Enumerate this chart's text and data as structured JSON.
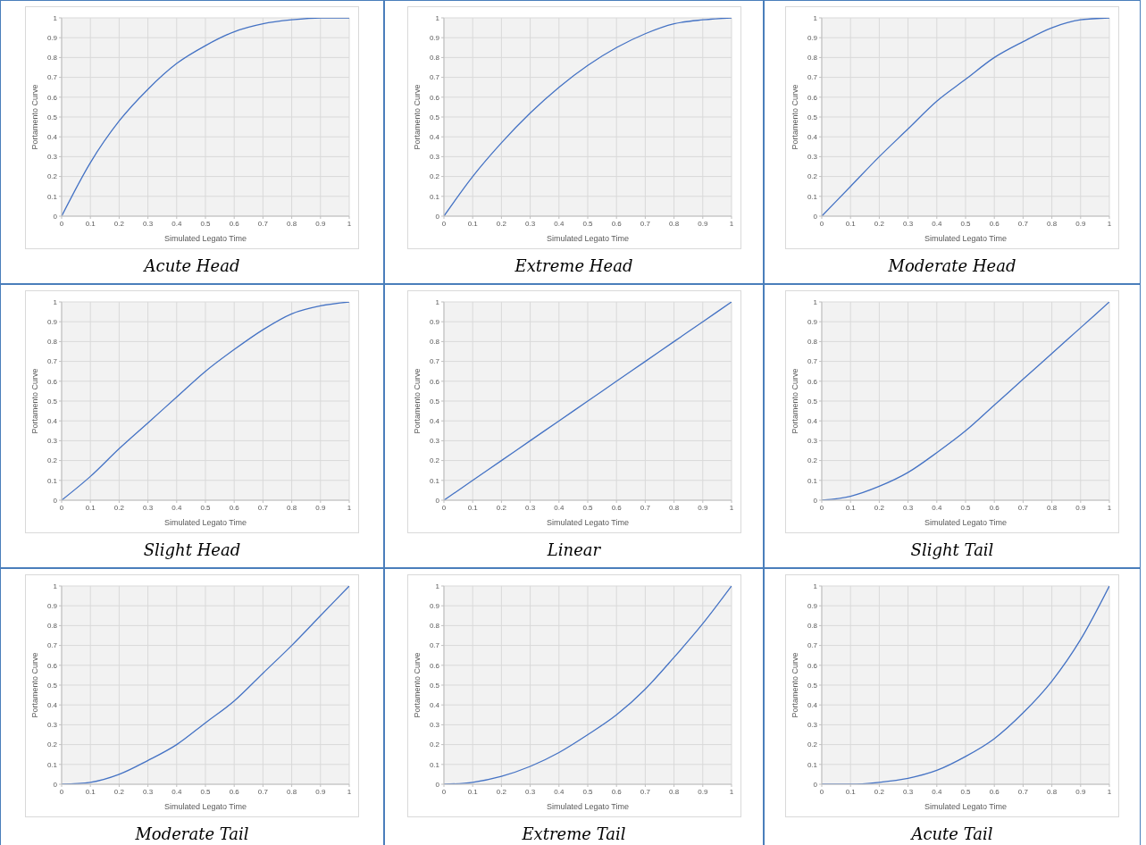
{
  "chart_data": [
    {
      "type": "line",
      "title": "Acute Head",
      "xlabel": "Simulated Legato Time",
      "ylabel": "Portamento Curve",
      "color": "#4472c4",
      "x": [
        0,
        0.1,
        0.2,
        0.3,
        0.4,
        0.5,
        0.6,
        0.7,
        0.8,
        0.9,
        1
      ],
      "values": [
        0,
        0.27,
        0.48,
        0.64,
        0.77,
        0.86,
        0.93,
        0.97,
        0.99,
        1,
        1
      ],
      "xlim": [
        0,
        1
      ],
      "ylim": [
        0,
        1
      ],
      "xticks": [
        0,
        0.1,
        0.2,
        0.3,
        0.4,
        0.5,
        0.6,
        0.7,
        0.8,
        0.9,
        1
      ],
      "yticks": [
        0,
        0.1,
        0.2,
        0.3,
        0.4,
        0.5,
        0.6,
        0.7,
        0.8,
        0.9,
        1
      ],
      "grid": true
    },
    {
      "type": "line",
      "title": "Extreme Head",
      "xlabel": "Simulated Legato Time",
      "ylabel": "Portamento Curve",
      "color": "#4472c4",
      "x": [
        0,
        0.1,
        0.2,
        0.3,
        0.4,
        0.5,
        0.6,
        0.7,
        0.8,
        0.9,
        1
      ],
      "values": [
        0,
        0.2,
        0.37,
        0.52,
        0.65,
        0.76,
        0.85,
        0.92,
        0.97,
        0.99,
        1
      ],
      "xlim": [
        0,
        1
      ],
      "ylim": [
        0,
        1
      ],
      "xticks": [
        0,
        0.1,
        0.2,
        0.3,
        0.4,
        0.5,
        0.6,
        0.7,
        0.8,
        0.9,
        1
      ],
      "yticks": [
        0,
        0.1,
        0.2,
        0.3,
        0.4,
        0.5,
        0.6,
        0.7,
        0.8,
        0.9,
        1
      ],
      "grid": true
    },
    {
      "type": "line",
      "title": "Moderate Head",
      "xlabel": "Simulated Legato Time",
      "ylabel": "Portamento Curve",
      "color": "#4472c4",
      "x": [
        0,
        0.1,
        0.2,
        0.3,
        0.4,
        0.5,
        0.6,
        0.7,
        0.8,
        0.9,
        1
      ],
      "values": [
        0,
        0.15,
        0.3,
        0.44,
        0.58,
        0.69,
        0.8,
        0.88,
        0.95,
        0.99,
        1
      ],
      "xlim": [
        0,
        1
      ],
      "ylim": [
        0,
        1
      ],
      "xticks": [
        0,
        0.1,
        0.2,
        0.3,
        0.4,
        0.5,
        0.6,
        0.7,
        0.8,
        0.9,
        1
      ],
      "yticks": [
        0,
        0.1,
        0.2,
        0.3,
        0.4,
        0.5,
        0.6,
        0.7,
        0.8,
        0.9,
        1
      ],
      "grid": true
    },
    {
      "type": "line",
      "title": "Slight Head",
      "xlabel": "Simulated Legato Time",
      "ylabel": "Portamento Curve",
      "color": "#4472c4",
      "x": [
        0,
        0.1,
        0.2,
        0.3,
        0.4,
        0.5,
        0.6,
        0.7,
        0.8,
        0.9,
        1
      ],
      "values": [
        0,
        0.12,
        0.26,
        0.39,
        0.52,
        0.65,
        0.76,
        0.86,
        0.94,
        0.98,
        1
      ],
      "xlim": [
        0,
        1
      ],
      "ylim": [
        0,
        1
      ],
      "xticks": [
        0,
        0.1,
        0.2,
        0.3,
        0.4,
        0.5,
        0.6,
        0.7,
        0.8,
        0.9,
        1
      ],
      "yticks": [
        0,
        0.1,
        0.2,
        0.3,
        0.4,
        0.5,
        0.6,
        0.7,
        0.8,
        0.9,
        1
      ],
      "grid": true
    },
    {
      "type": "line",
      "title": "Linear",
      "xlabel": "Simulated Legato Time",
      "ylabel": "Portamento Curve",
      "color": "#4472c4",
      "x": [
        0,
        0.1,
        0.2,
        0.3,
        0.4,
        0.5,
        0.6,
        0.7,
        0.8,
        0.9,
        1
      ],
      "values": [
        0,
        0.1,
        0.2,
        0.3,
        0.4,
        0.5,
        0.6,
        0.7,
        0.8,
        0.9,
        1
      ],
      "xlim": [
        0,
        1
      ],
      "ylim": [
        0,
        1
      ],
      "xticks": [
        0,
        0.1,
        0.2,
        0.3,
        0.4,
        0.5,
        0.6,
        0.7,
        0.8,
        0.9,
        1
      ],
      "yticks": [
        0,
        0.1,
        0.2,
        0.3,
        0.4,
        0.5,
        0.6,
        0.7,
        0.8,
        0.9,
        1
      ],
      "grid": true
    },
    {
      "type": "line",
      "title": "Slight Tail",
      "xlabel": "Simulated Legato Time",
      "ylabel": "Portamento Curve",
      "color": "#4472c4",
      "x": [
        0,
        0.1,
        0.2,
        0.3,
        0.4,
        0.5,
        0.6,
        0.7,
        0.8,
        0.9,
        1
      ],
      "values": [
        0,
        0.02,
        0.07,
        0.14,
        0.24,
        0.35,
        0.48,
        0.61,
        0.74,
        0.87,
        1
      ],
      "xlim": [
        0,
        1
      ],
      "ylim": [
        0,
        1
      ],
      "xticks": [
        0,
        0.1,
        0.2,
        0.3,
        0.4,
        0.5,
        0.6,
        0.7,
        0.8,
        0.9,
        1
      ],
      "yticks": [
        0,
        0.1,
        0.2,
        0.3,
        0.4,
        0.5,
        0.6,
        0.7,
        0.8,
        0.9,
        1
      ],
      "grid": true
    },
    {
      "type": "line",
      "title": "Moderate Tail",
      "xlabel": "Simulated Legato Time",
      "ylabel": "Portamento Curve",
      "color": "#4472c4",
      "x": [
        0,
        0.1,
        0.2,
        0.3,
        0.4,
        0.5,
        0.6,
        0.7,
        0.8,
        0.9,
        1
      ],
      "values": [
        0,
        0.01,
        0.05,
        0.12,
        0.2,
        0.31,
        0.42,
        0.56,
        0.7,
        0.85,
        1
      ],
      "xlim": [
        0,
        1
      ],
      "ylim": [
        0,
        1
      ],
      "xticks": [
        0,
        0.1,
        0.2,
        0.3,
        0.4,
        0.5,
        0.6,
        0.7,
        0.8,
        0.9,
        1
      ],
      "yticks": [
        0,
        0.1,
        0.2,
        0.3,
        0.4,
        0.5,
        0.6,
        0.7,
        0.8,
        0.9,
        1
      ],
      "grid": true
    },
    {
      "type": "line",
      "title": "Extreme Tail",
      "xlabel": "Simulated Legato Time",
      "ylabel": "Portamento Curve",
      "color": "#4472c4",
      "x": [
        0,
        0.1,
        0.2,
        0.3,
        0.4,
        0.5,
        0.6,
        0.7,
        0.8,
        0.9,
        1
      ],
      "values": [
        0,
        0.01,
        0.04,
        0.09,
        0.16,
        0.25,
        0.35,
        0.48,
        0.64,
        0.81,
        1
      ],
      "xlim": [
        0,
        1
      ],
      "ylim": [
        0,
        1
      ],
      "xticks": [
        0,
        0.1,
        0.2,
        0.3,
        0.4,
        0.5,
        0.6,
        0.7,
        0.8,
        0.9,
        1
      ],
      "yticks": [
        0,
        0.1,
        0.2,
        0.3,
        0.4,
        0.5,
        0.6,
        0.7,
        0.8,
        0.9,
        1
      ],
      "grid": true
    },
    {
      "type": "line",
      "title": "Acute Tail",
      "xlabel": "Simulated Legato Time",
      "ylabel": "Portamento Curve",
      "color": "#4472c4",
      "x": [
        0,
        0.1,
        0.2,
        0.3,
        0.4,
        0.5,
        0.6,
        0.7,
        0.8,
        0.9,
        1
      ],
      "values": [
        0,
        0,
        0.01,
        0.03,
        0.07,
        0.14,
        0.23,
        0.36,
        0.52,
        0.73,
        1
      ],
      "xlim": [
        0,
        1
      ],
      "ylim": [
        0,
        1
      ],
      "xticks": [
        0,
        0.1,
        0.2,
        0.3,
        0.4,
        0.5,
        0.6,
        0.7,
        0.8,
        0.9,
        1
      ],
      "yticks": [
        0,
        0.1,
        0.2,
        0.3,
        0.4,
        0.5,
        0.6,
        0.7,
        0.8,
        0.9,
        1
      ],
      "grid": true
    }
  ]
}
